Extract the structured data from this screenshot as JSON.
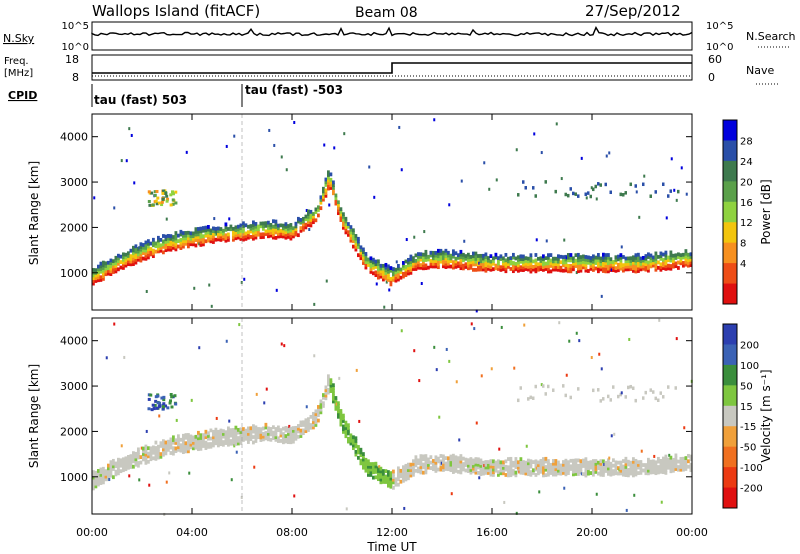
{
  "header": {
    "title": "Wallops Island (fitACF)",
    "beam": "Beam 08",
    "date": "27/Sep/2012"
  },
  "nsky_panel": {
    "left_label": "N.Sky",
    "left_ticks": [
      "10^5",
      "10^0"
    ],
    "right_label": "N.Search",
    "right_ticks": [
      "10^5",
      "10^0"
    ]
  },
  "freq_panel": {
    "left_label_line1": "Freq.",
    "left_label_line2": "[MHz]",
    "left_ticks": [
      "18",
      "8"
    ],
    "right_label": "Nave",
    "right_ticks": [
      "60",
      "0"
    ]
  },
  "cpid": {
    "label": "CPID",
    "segments": [
      {
        "start_hour": 0,
        "text": "tau (fast) 503"
      },
      {
        "start_hour": 6,
        "text": "tau (fast) -503"
      }
    ]
  },
  "x_axis": {
    "label": "Time UT",
    "ticks": [
      "00:00",
      "04:00",
      "08:00",
      "12:00",
      "16:00",
      "20:00",
      "00:00"
    ]
  },
  "chart_data": [
    {
      "type": "heatmap",
      "name": "power",
      "ylabel": "Slant Range [km]",
      "y_ticks": [
        "1000",
        "2000",
        "3000",
        "4000"
      ],
      "colorbar_label": "Power [dB]",
      "colorbar_ticks": [
        "28",
        "24",
        "20",
        "16",
        "12",
        "8",
        "4"
      ],
      "colorbar_colors": [
        "#0000dd",
        "#2a4fa8",
        "#3e7a4e",
        "#5aa04a",
        "#8fd23f",
        "#f3c50d",
        "#f7901f",
        "#ee4d16",
        "#e0100f"
      ],
      "x_hours": [
        0,
        1,
        2,
        3,
        4,
        5,
        6,
        7,
        8,
        9,
        9.5,
        10,
        11,
        12,
        13,
        14,
        16,
        18,
        20,
        22,
        23.9
      ],
      "band_center_km": [
        900,
        1200,
        1450,
        1650,
        1750,
        1850,
        1900,
        1950,
        1900,
        2300,
        3100,
        2200,
        1200,
        900,
        1250,
        1300,
        1200,
        1200,
        1200,
        1200,
        1300
      ],
      "xlim_hours": [
        0,
        24
      ],
      "ylim_km": [
        180,
        4500
      ]
    },
    {
      "type": "heatmap",
      "name": "velocity",
      "ylabel": "Slant Range [km]",
      "y_ticks": [
        "1000",
        "2000",
        "3000",
        "4000"
      ],
      "colorbar_label": "Velocity [m s⁻¹]",
      "colorbar_ticks": [
        "200",
        "100",
        "50",
        "15",
        "-15",
        "-50",
        "-100",
        "-200"
      ],
      "colorbar_colors": [
        "#2c3fb0",
        "#3b62b5",
        "#3a8e3c",
        "#7ec63f",
        "#c8c8c0",
        "#f0a03a",
        "#f07020",
        "#ec3a12",
        "#e01010"
      ],
      "x_hours": [
        0,
        1,
        2,
        3,
        4,
        5,
        6,
        7,
        8,
        9,
        9.5,
        10,
        11,
        12,
        13,
        14,
        16,
        18,
        20,
        22,
        23.9
      ],
      "band_center_km": [
        900,
        1200,
        1450,
        1650,
        1750,
        1850,
        1900,
        1950,
        1900,
        2300,
        3100,
        2200,
        1200,
        900,
        1250,
        1300,
        1200,
        1200,
        1200,
        1200,
        1300
      ],
      "xlim_hours": [
        0,
        24
      ],
      "ylim_km": [
        180,
        4500
      ]
    }
  ]
}
